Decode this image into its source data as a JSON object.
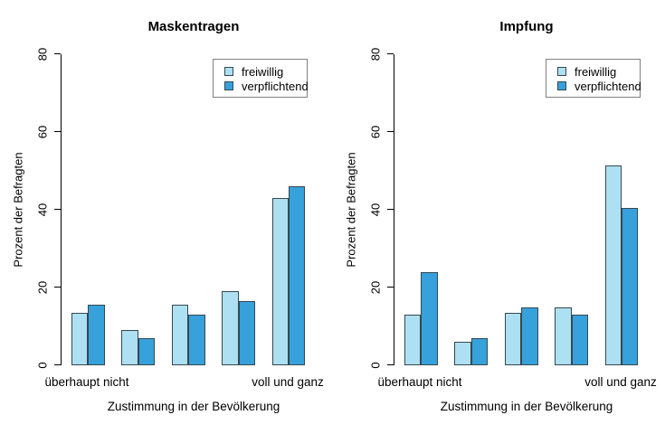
{
  "figure": {
    "background": "#ffffff"
  },
  "chart_data": [
    {
      "type": "bar",
      "title": "Maskentragen",
      "xlabel": "Zustimmung in der Bevölkerung",
      "ylabel": "Prozent der Befragten",
      "ylim": [
        0,
        80
      ],
      "yticks": [
        0,
        20,
        40,
        60,
        80
      ],
      "grid": false,
      "legend_position": "top-right",
      "categories": [
        "überhaupt nicht",
        "",
        "",
        "",
        "voll und ganz"
      ],
      "bar_border_color": "#37474F",
      "series": [
        {
          "name": "freiwillig",
          "color": "#ADE0F2",
          "values": [
            13.5,
            9,
            15.5,
            19,
            43
          ]
        },
        {
          "name": "verpflichtend",
          "color": "#36A1DB",
          "values": [
            15.5,
            7,
            13,
            16.5,
            46
          ]
        }
      ]
    },
    {
      "type": "bar",
      "title": "Impfung",
      "xlabel": "Zustimmung in der Bevölkerung",
      "ylabel": "Prozent der Befragten",
      "ylim": [
        0,
        80
      ],
      "yticks": [
        0,
        20,
        40,
        60,
        80
      ],
      "grid": false,
      "legend_position": "top-right",
      "categories": [
        "überhaupt nicht",
        "",
        "",
        "",
        "voll und ganz"
      ],
      "bar_border_color": "#37474F",
      "series": [
        {
          "name": "freiwillig",
          "color": "#ADE0F2",
          "values": [
            13,
            6,
            13.5,
            15,
            51.5
          ]
        },
        {
          "name": "verpflichtend",
          "color": "#36A1DB",
          "values": [
            24,
            7,
            15,
            13,
            40.5
          ]
        }
      ]
    }
  ]
}
